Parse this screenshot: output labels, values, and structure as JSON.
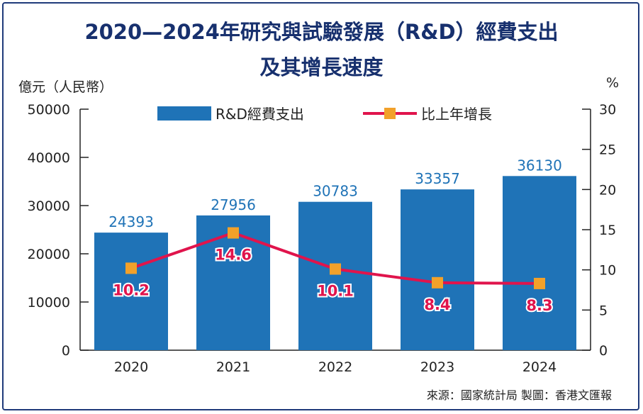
{
  "header": {
    "title_line1": "2020—2024年研究與試驗發展（R&D）經費支出",
    "title_line2": "及其增長速度",
    "left_unit": "億元（人民幣）",
    "right_unit": "%"
  },
  "source": "來源：國家統計局 製圖：香港文匯報",
  "colors": {
    "bar": "#1f73b7",
    "line": "#e0144c",
    "marker": "#f2a12a",
    "title": "#17306e",
    "bar_label": "#1f73b7"
  },
  "chart_data": {
    "type": "bar",
    "categories": [
      "2020",
      "2021",
      "2022",
      "2023",
      "2024"
    ],
    "series": [
      {
        "name": "R&D經費支出",
        "type": "bar",
        "axis": "left",
        "values": [
          24393,
          27956,
          30783,
          33357,
          36130
        ]
      },
      {
        "name": "比上年增長",
        "type": "line",
        "axis": "right",
        "values": [
          10.2,
          14.6,
          10.1,
          8.4,
          8.3
        ]
      }
    ],
    "y_left": {
      "min": 0,
      "max": 50000,
      "ticks": [
        0,
        10000,
        20000,
        30000,
        40000,
        50000
      ]
    },
    "y_right": {
      "min": 0,
      "max": 30,
      "ticks": [
        0,
        5,
        10,
        15,
        20,
        25,
        30
      ]
    },
    "legend_position": "top",
    "grid": false
  }
}
